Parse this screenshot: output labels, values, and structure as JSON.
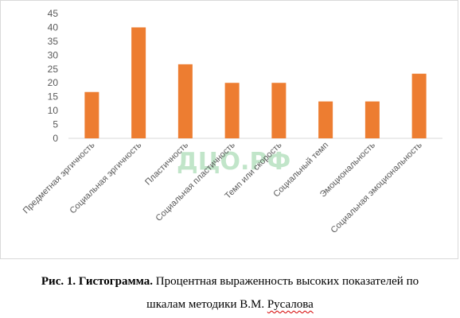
{
  "watermark_text": "ДЦО.РФ",
  "caption": {
    "prefix": "Рис. 1. Гистограмма.",
    "text": "Процентная выраженность высоких показателей по",
    "line2_text": "шкалам методики В.М. ",
    "line2_underlined": "Русалова"
  },
  "chart_data": {
    "type": "bar",
    "categories": [
      "Предметная эргичность",
      "Социальная эргичность",
      "Пластичность",
      "Социальная пластичность",
      "Темп или скорость",
      "Социальный темп",
      "Эмоциональность",
      "Социальная эмоциональность"
    ],
    "values": [
      16.7,
      40,
      26.7,
      20,
      20,
      13.3,
      13.3,
      23.3
    ],
    "ylim": [
      0,
      45
    ],
    "yticks": [
      0,
      5,
      10,
      15,
      20,
      25,
      30,
      35,
      40,
      45
    ],
    "grid": false,
    "legend": "none",
    "bar_color": "#ed7d31",
    "title": "",
    "xlabel": "",
    "ylabel": ""
  }
}
